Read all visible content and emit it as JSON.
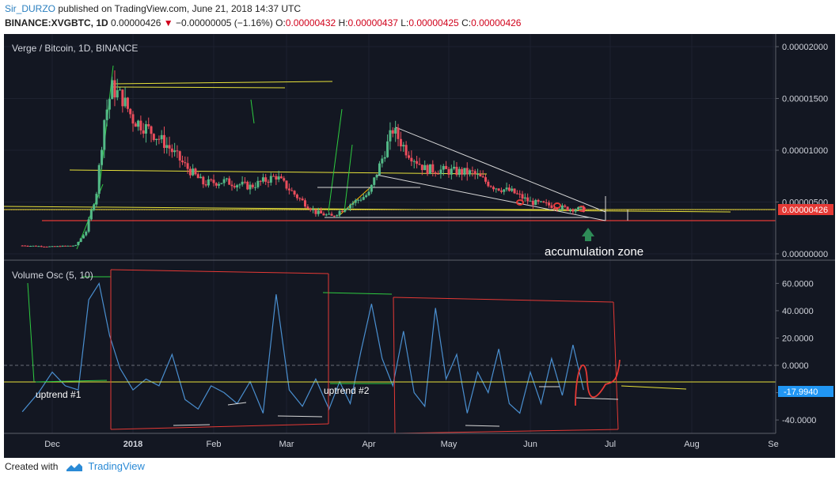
{
  "header": {
    "author": "Sir_DURZO",
    "published_text": "published on TradingView.com, June 21, 2018 14:37 UTC"
  },
  "ticker": {
    "symbol": "BINANCE:XVGBTC, 1D",
    "last": "0.00000426",
    "change": "−0.00000005 (−1.16%)",
    "o_label": "O:",
    "o": "0.00000432",
    "h_label": "H:",
    "h": "0.00000437",
    "l_label": "L:",
    "l": "0.00000425",
    "c_label": "C:",
    "c": "0.00000426"
  },
  "price_pane": {
    "title": "Verge / Bitcoin, 1D, BINANCE",
    "last_price_tag": "0.00000426",
    "annotation": "accumulation zone"
  },
  "osc_pane": {
    "title": "Volume Osc (5, 10)",
    "current_value_tag": "-17.9940",
    "annotations": [
      "uptrend #1",
      "uptrend #2"
    ]
  },
  "footer": {
    "created_with": "Created with",
    "brand": "TradingView"
  },
  "colors": {
    "background": "#131722",
    "up_candle": "#53b987",
    "down_candle": "#eb4d5c",
    "oscillator": "#4a8fd0",
    "trend_yellow": "#e8e23a",
    "support_red": "#e53935",
    "trend_green": "#2ecc40",
    "trendline_white": "#d8d8d8"
  },
  "chart_data": [
    {
      "type": "candlestick",
      "title": "Verge / Bitcoin, 1D, BINANCE",
      "x_ticks": [
        "Dec",
        "2018",
        "Feb",
        "Mar",
        "Apr",
        "May",
        "Jun",
        "Jul",
        "Aug",
        "Se"
      ],
      "y_ticks": [
        "0.00000000",
        "0.00000500",
        "0.00001000",
        "0.00001500",
        "0.00002000"
      ],
      "ylim": [
        0,
        2e-05
      ],
      "last_value": 4.26e-06,
      "close_series": {
        "x": [
          "2017-11-20",
          "2017-12-01",
          "2017-12-10",
          "2017-12-14",
          "2017-12-18",
          "2017-12-21",
          "2017-12-24",
          "2017-12-28",
          "2018-01-01",
          "2018-01-07",
          "2018-01-14",
          "2018-01-21",
          "2018-01-28",
          "2018-02-05",
          "2018-02-15",
          "2018-02-25",
          "2018-03-05",
          "2018-03-12",
          "2018-03-18",
          "2018-03-25",
          "2018-04-01",
          "2018-04-05",
          "2018-04-10",
          "2018-04-15",
          "2018-04-22",
          "2018-05-01",
          "2018-05-10",
          "2018-05-18",
          "2018-05-25",
          "2018-06-01",
          "2018-06-08",
          "2018-06-14",
          "2018-06-21"
        ],
        "y": [
          8e-07,
          7e-07,
          8e-07,
          2.2e-06,
          6e-06,
          1.3e-05,
          1.6e-05,
          1.5e-05,
          1.3e-05,
          1.2e-05,
          1.05e-05,
          8.5e-06,
          6.8e-06,
          7e-06,
          6.5e-06,
          7.5e-06,
          5.5e-06,
          4e-06,
          3.6e-06,
          4.8e-06,
          5.8e-06,
          8.5e-06,
          1.2e-05,
          1e-05,
          8.2e-06,
          8e-06,
          7.8e-06,
          6.5e-06,
          6e-06,
          5e-06,
          4.7e-06,
          4.4e-06,
          4.26e-06
        ]
      }
    },
    {
      "type": "line",
      "title": "Volume Osc (5, 10)",
      "x_ticks": [
        "Dec",
        "2018",
        "Feb",
        "Mar",
        "Apr",
        "May",
        "Jun",
        "Jul",
        "Aug",
        "Se"
      ],
      "y_ticks": [
        "-40.0000",
        "-20.0000",
        "0.0000",
        "20.0000",
        "40.0000",
        "60.0000"
      ],
      "ylim": [
        -44,
        66
      ],
      "last_value": -17.994,
      "series": [
        {
          "x": [
            "2017-11-20",
            "2017-11-26",
            "2017-12-01",
            "2017-12-06",
            "2017-12-11",
            "2017-12-15",
            "2017-12-19",
            "2017-12-23",
            "2017-12-27",
            "2018-01-01",
            "2018-01-06",
            "2018-01-11",
            "2018-01-16",
            "2018-01-21",
            "2018-01-26",
            "2018-01-31",
            "2018-02-05",
            "2018-02-10",
            "2018-02-15",
            "2018-02-20",
            "2018-02-25",
            "2018-03-02",
            "2018-03-07",
            "2018-03-12",
            "2018-03-17",
            "2018-03-21",
            "2018-03-25",
            "2018-03-29",
            "2018-04-02",
            "2018-04-06",
            "2018-04-10",
            "2018-04-14",
            "2018-04-18",
            "2018-04-22",
            "2018-04-26",
            "2018-04-30",
            "2018-05-04",
            "2018-05-08",
            "2018-05-12",
            "2018-05-16",
            "2018-05-20",
            "2018-05-24",
            "2018-05-28",
            "2018-06-01",
            "2018-06-05",
            "2018-06-09",
            "2018-06-13",
            "2018-06-17",
            "2018-06-21"
          ],
          "y": [
            -34,
            -20,
            -5,
            -15,
            -18,
            48,
            60,
            22,
            -2,
            -18,
            -10,
            -15,
            8,
            -25,
            -32,
            -15,
            -20,
            -28,
            -12,
            -35,
            52,
            -18,
            -30,
            -10,
            -32,
            -12,
            -28,
            10,
            45,
            5,
            -15,
            25,
            -20,
            -30,
            42,
            -10,
            8,
            -35,
            -5,
            -20,
            12,
            -28,
            -35,
            -5,
            -28,
            5,
            -22,
            15,
            -18
          ]
        }
      ]
    }
  ]
}
